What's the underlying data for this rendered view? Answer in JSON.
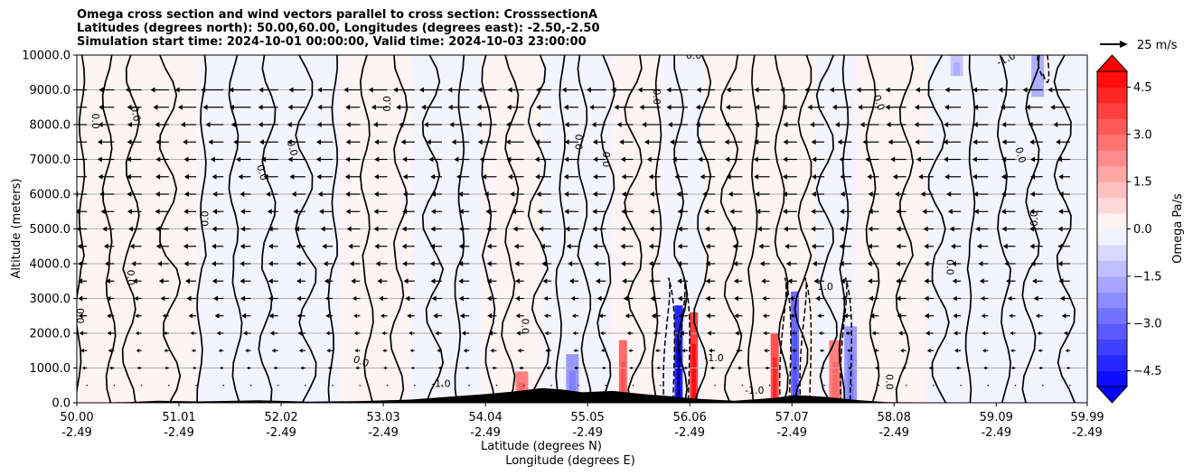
{
  "chart_data": {
    "type": "contour",
    "title_lines": [
      "Omega cross section and wind vectors parallel to cross section: CrosssectionA",
      "Latitudes (degrees north): 50.00,60.00, Longitudes (degrees east): -2.50,-2.50",
      "Simulation start time: 2024-10-01 00:00:00, Valid time: 2024-10-03 23:00:00"
    ],
    "ylabel": "Altitude (meters)",
    "xlabel_lines": [
      "Latitude (degrees N)",
      "Longitude (degrees E)"
    ],
    "ylim": [
      0,
      10000
    ],
    "yticks": [
      {
        "value": 0,
        "label": "0.0"
      },
      {
        "value": 1000,
        "label": "1000.0"
      },
      {
        "value": 2000,
        "label": "2000.0"
      },
      {
        "value": 3000,
        "label": "3000.0"
      },
      {
        "value": 4000,
        "label": "4000.0"
      },
      {
        "value": 5000,
        "label": "5000.0"
      },
      {
        "value": 6000,
        "label": "6000.0"
      },
      {
        "value": 7000,
        "label": "7000.0"
      },
      {
        "value": 8000,
        "label": "8000.0"
      },
      {
        "value": 9000,
        "label": "9000.0"
      },
      {
        "value": 10000,
        "label": "10000.0"
      }
    ],
    "xlim": [
      50.0,
      59.99
    ],
    "xticks": [
      {
        "value": 50.0,
        "lat": "50.00",
        "lon": "-2.49"
      },
      {
        "value": 51.01,
        "lat": "51.01",
        "lon": "-2.49"
      },
      {
        "value": 52.02,
        "lat": "52.02",
        "lon": "-2.49"
      },
      {
        "value": 53.03,
        "lat": "53.03",
        "lon": "-2.49"
      },
      {
        "value": 54.04,
        "lat": "54.04",
        "lon": "-2.49"
      },
      {
        "value": 55.05,
        "lat": "55.05",
        "lon": "-2.49"
      },
      {
        "value": 56.06,
        "lat": "56.06",
        "lon": "-2.49"
      },
      {
        "value": 57.07,
        "lat": "57.07",
        "lon": "-2.49"
      },
      {
        "value": 58.08,
        "lat": "58.08",
        "lon": "-2.49"
      },
      {
        "value": 59.09,
        "lat": "59.09",
        "lon": "-2.49"
      },
      {
        "value": 59.99,
        "lat": "59.99",
        "lon": "-2.49"
      }
    ],
    "grid": "horizontal",
    "colorbar": {
      "label": "Omega Pa/s",
      "range": [
        -5.0,
        5.0
      ],
      "step": 0.5,
      "extend": "both",
      "ticks": [
        {
          "value": 4.5,
          "label": "4.5"
        },
        {
          "value": 3.0,
          "label": "3.0"
        },
        {
          "value": 1.5,
          "label": "1.5"
        },
        {
          "value": 0.0,
          "label": "0.0"
        },
        {
          "value": -1.5,
          "label": "−1.5"
        },
        {
          "value": -3.0,
          "label": "−3.0"
        },
        {
          "value": -4.5,
          "label": "−4.5"
        }
      ],
      "colormap": "bwr"
    },
    "vector_key": {
      "label": "25 m/s",
      "value": 25
    },
    "contour_levels": [
      -1.0,
      0.0,
      1.0
    ],
    "contour_labels_visible": [
      "0.0",
      "-1.0",
      "1.0"
    ],
    "omega_bands": [
      {
        "x0": 50.0,
        "x1": 50.6,
        "value": 0.15
      },
      {
        "x0": 50.6,
        "x1": 51.2,
        "value": 0.3
      },
      {
        "x0": 51.2,
        "x1": 51.9,
        "value": -0.2
      },
      {
        "x0": 51.9,
        "x1": 52.6,
        "value": -0.1
      },
      {
        "x0": 52.6,
        "x1": 53.3,
        "value": 0.1
      },
      {
        "x0": 53.3,
        "x1": 54.0,
        "value": -0.15
      },
      {
        "x0": 54.0,
        "x1": 54.6,
        "value": 0.2
      },
      {
        "x0": 54.6,
        "x1": 55.3,
        "value": -0.1
      },
      {
        "x0": 55.3,
        "x1": 55.8,
        "value": 0.3
      },
      {
        "x0": 55.8,
        "x1": 56.2,
        "value": -0.4
      },
      {
        "x0": 56.2,
        "x1": 56.8,
        "value": 0.2
      },
      {
        "x0": 56.8,
        "x1": 57.3,
        "value": 0.4
      },
      {
        "x0": 57.3,
        "x1": 57.7,
        "value": -0.3
      },
      {
        "x0": 57.7,
        "x1": 58.4,
        "value": 0.15
      },
      {
        "x0": 58.4,
        "x1": 59.2,
        "value": -0.1
      },
      {
        "x0": 59.2,
        "x1": 59.99,
        "value": -0.15
      }
    ],
    "strong_cells": [
      {
        "x": 54.4,
        "z0": 0,
        "z1": 900,
        "value": 2.5
      },
      {
        "x": 54.9,
        "z0": 0,
        "z1": 1400,
        "value": -2.0
      },
      {
        "x": 55.4,
        "z0": 0,
        "z1": 1800,
        "value": 3.0
      },
      {
        "x": 55.95,
        "z0": 0,
        "z1": 2800,
        "value": -4.5
      },
      {
        "x": 56.1,
        "z0": 0,
        "z1": 2600,
        "value": 4.0
      },
      {
        "x": 56.9,
        "z0": 0,
        "z1": 2000,
        "value": 3.5
      },
      {
        "x": 57.1,
        "z0": 0,
        "z1": 3200,
        "value": -3.0
      },
      {
        "x": 57.5,
        "z0": 0,
        "z1": 1800,
        "value": 2.5
      },
      {
        "x": 57.65,
        "z0": 0,
        "z1": 2200,
        "value": -2.0
      },
      {
        "x": 59.5,
        "z0": 8800,
        "z1": 10000,
        "value": -1.5
      },
      {
        "x": 58.7,
        "z0": 9400,
        "z1": 10000,
        "value": -1.2
      }
    ],
    "terrain": [
      {
        "x": 50.0,
        "h": 0
      },
      {
        "x": 50.5,
        "h": 20
      },
      {
        "x": 50.8,
        "h": 60
      },
      {
        "x": 51.2,
        "h": 40
      },
      {
        "x": 51.8,
        "h": 70
      },
      {
        "x": 52.3,
        "h": 30
      },
      {
        "x": 52.8,
        "h": 50
      },
      {
        "x": 53.3,
        "h": 90
      },
      {
        "x": 53.7,
        "h": 180
      },
      {
        "x": 54.0,
        "h": 240
      },
      {
        "x": 54.3,
        "h": 320
      },
      {
        "x": 54.6,
        "h": 420
      },
      {
        "x": 54.8,
        "h": 380
      },
      {
        "x": 55.0,
        "h": 300
      },
      {
        "x": 55.3,
        "h": 340
      },
      {
        "x": 55.6,
        "h": 250
      },
      {
        "x": 55.9,
        "h": 180
      },
      {
        "x": 56.1,
        "h": 120
      },
      {
        "x": 56.5,
        "h": 60
      },
      {
        "x": 56.9,
        "h": 140
      },
      {
        "x": 57.1,
        "h": 220
      },
      {
        "x": 57.4,
        "h": 170
      },
      {
        "x": 57.7,
        "h": 80
      },
      {
        "x": 58.0,
        "h": 20
      },
      {
        "x": 59.0,
        "h": 0
      },
      {
        "x": 59.99,
        "h": 0
      }
    ],
    "wind_rows": [
      9000,
      8500,
      8000,
      7500,
      7000,
      6500,
      6000,
      5500,
      5000,
      4500,
      4000,
      3500,
      3000,
      2500,
      2000,
      1500,
      1000,
      500
    ],
    "wind_columns_x0": 50.1,
    "wind_columns_dx": 0.27,
    "wind_speed_profile": [
      {
        "z": 10000,
        "u": -8
      },
      {
        "z": 8000,
        "u": -6
      },
      {
        "z": 6000,
        "u": -4
      },
      {
        "z": 4000,
        "u": -3
      },
      {
        "z": 2000,
        "u": -1.5
      },
      {
        "z": 0,
        "u": 0
      }
    ],
    "zero_contour_lines_x": [
      50.05,
      50.3,
      50.55,
      50.9,
      51.25,
      51.55,
      51.9,
      52.25,
      52.55,
      52.85,
      53.2,
      53.5,
      53.8,
      54.05,
      54.3,
      54.55,
      54.8,
      55.0,
      55.25,
      55.5,
      55.75,
      55.95,
      56.2,
      56.45,
      56.7,
      56.95,
      57.2,
      57.4,
      57.6,
      57.85,
      58.2,
      58.5,
      58.85,
      59.15,
      59.45,
      59.75
    ],
    "dashed_contours_x": [
      55.85,
      56.0,
      57.0,
      57.2,
      57.6,
      59.55
    ]
  }
}
